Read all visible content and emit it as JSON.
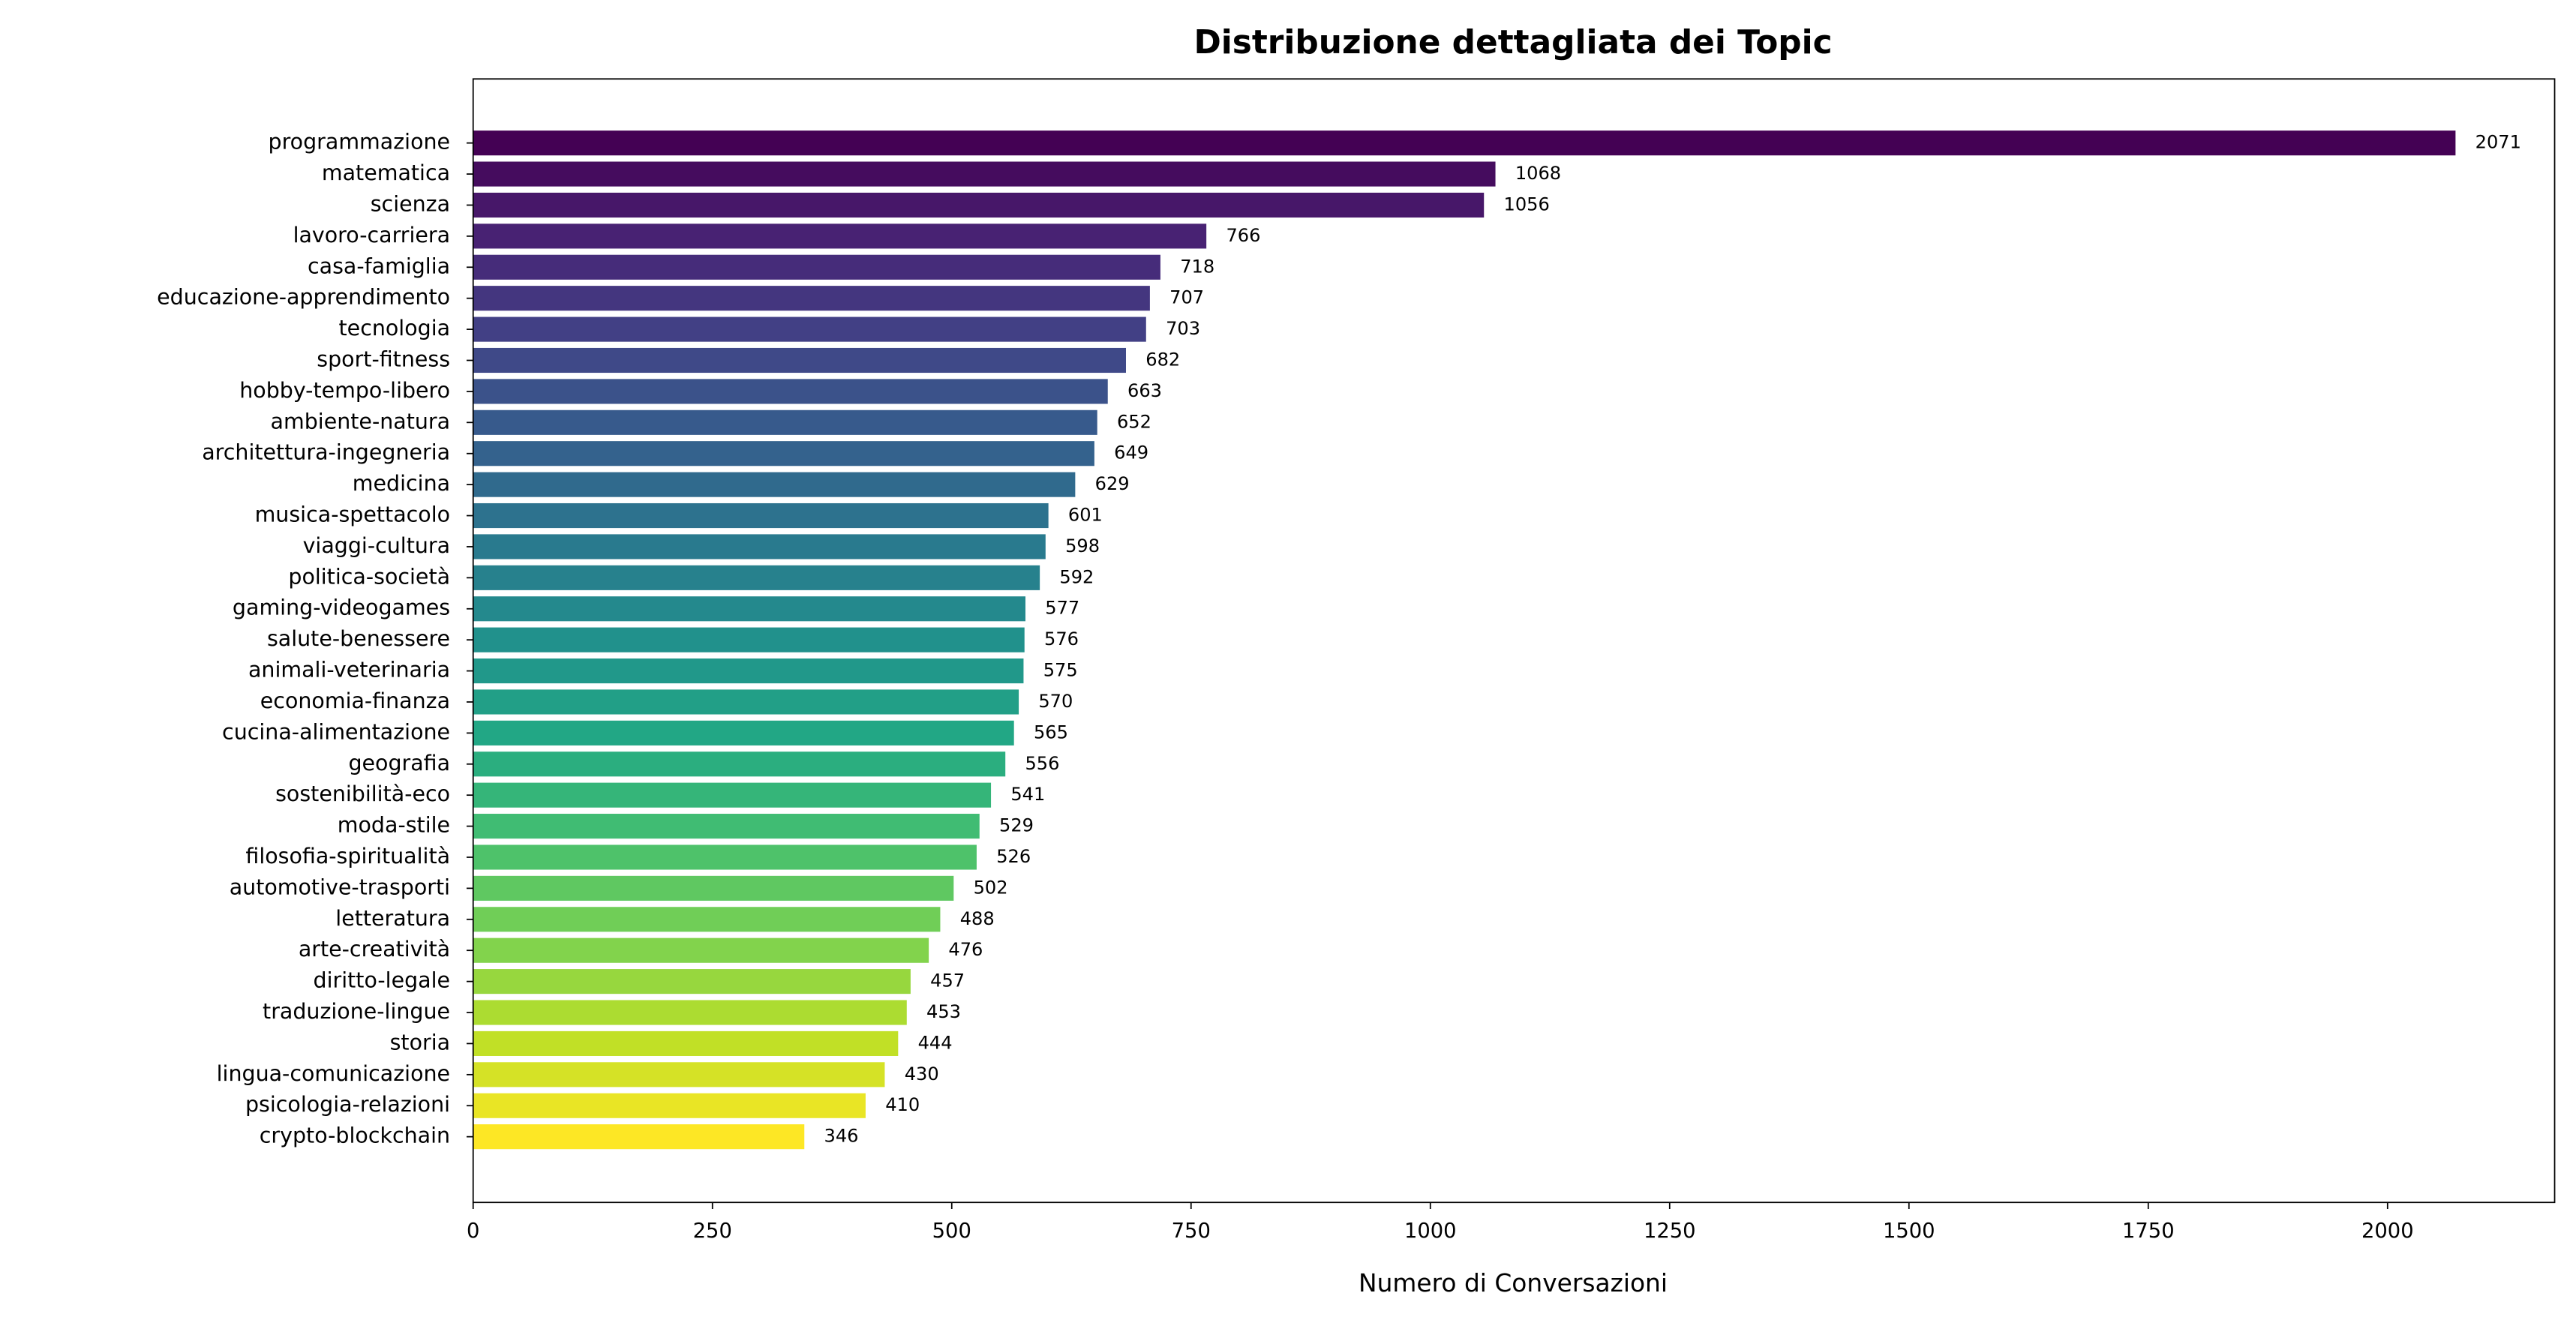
{
  "chart_data": {
    "type": "barh",
    "title": "Distribuzione dettagliata dei Topic",
    "xlabel": "Numero di Conversazioni",
    "categories": [
      "programmazione",
      "matematica",
      "scienza",
      "lavoro-carriera",
      "casa-famiglia",
      "educazione-apprendimento",
      "tecnologia",
      "sport-fitness",
      "hobby-tempo-libero",
      "ambiente-natura",
      "architettura-ingegneria",
      "medicina",
      "musica-spettacolo",
      "viaggi-cultura",
      "politica-società",
      "gaming-videogames",
      "salute-benessere",
      "animali-veterinaria",
      "economia-finanza",
      "cucina-alimentazione",
      "geografia",
      "sostenibilità-eco",
      "moda-stile",
      "filosofia-spiritualità",
      "automotive-trasporti",
      "letteratura",
      "arte-creatività",
      "diritto-legale",
      "traduzione-lingue",
      "storia",
      "lingua-comunicazione",
      "psicologia-relazioni",
      "crypto-blockchain"
    ],
    "values": [
      2071,
      1068,
      1056,
      766,
      718,
      707,
      703,
      682,
      663,
      652,
      649,
      629,
      601,
      598,
      592,
      577,
      576,
      575,
      570,
      565,
      556,
      541,
      529,
      526,
      502,
      488,
      476,
      457,
      453,
      444,
      430,
      410,
      346
    ],
    "colormap": [
      "#440154",
      "#482475",
      "#414487",
      "#355f8d",
      "#2a788e",
      "#21918c",
      "#22a884",
      "#44bf70",
      "#7ad151",
      "#bddf26",
      "#fde725"
    ],
    "xlim": [
      0,
      2174.55
    ],
    "xticks": [
      0,
      250,
      500,
      750,
      1000,
      1250,
      1500,
      1750,
      2000
    ]
  }
}
